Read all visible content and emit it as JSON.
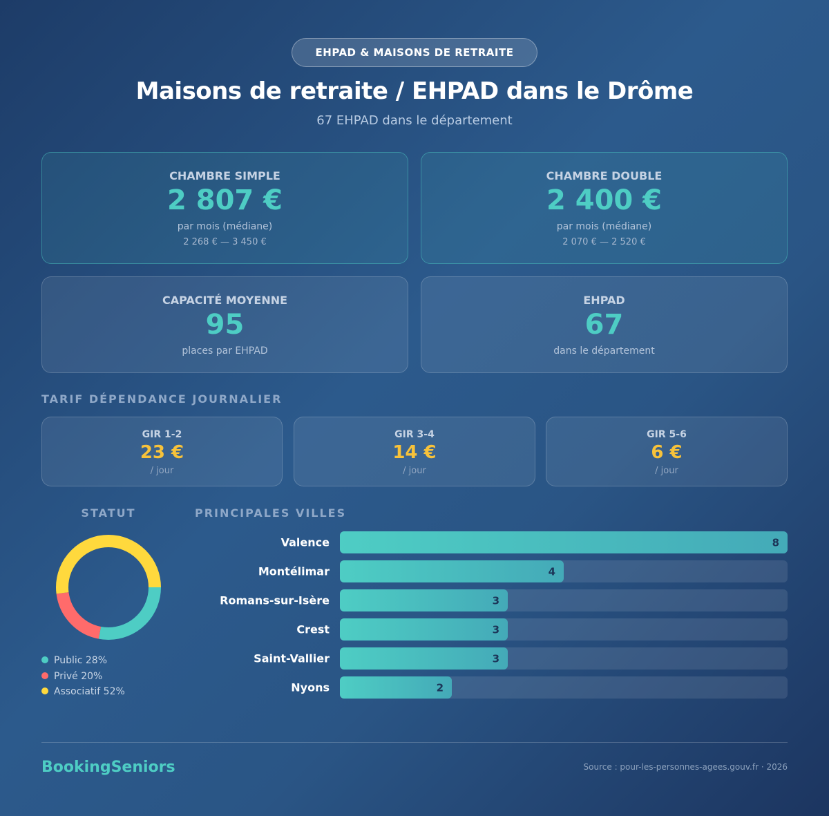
{
  "header": {
    "badge": "EHPAD & MAISONS DE RETRAITE",
    "title": "Maisons de retraite / EHPAD dans le Drôme",
    "subtitle": "67 EHPAD dans le département"
  },
  "cards": [
    {
      "label": "CHAMBRE SIMPLE",
      "value": "2 807 €",
      "note": "par mois (médiane)",
      "range": "2 268 € — 3 450 €"
    },
    {
      "label": "CHAMBRE DOUBLE",
      "value": "2 400 €",
      "note": "par mois (médiane)",
      "range": "2 070 € — 2 520 €"
    },
    {
      "label": "CAPACITÉ MOYENNE",
      "value": "95",
      "note": "places par EHPAD"
    },
    {
      "label": "EHPAD",
      "value": "67",
      "note": "dans le département"
    }
  ],
  "tarif": {
    "title": "TARIF DÉPENDANCE JOURNALIER",
    "items": [
      {
        "label": "GIR 1-2",
        "value": "23 €",
        "unit": "/ jour"
      },
      {
        "label": "GIR 3-4",
        "value": "14 €",
        "unit": "/ jour"
      },
      {
        "label": "GIR 5-6",
        "value": "6 €",
        "unit": "/ jour"
      }
    ]
  },
  "statut": {
    "type": "donut",
    "title": "STATUT",
    "categories": [
      "Public",
      "Privé",
      "Associatif"
    ],
    "values": [
      28,
      20,
      52
    ],
    "value_labels": [
      "28%",
      "20%",
      "52%"
    ],
    "colors": [
      "#4ecdc4",
      "#ff6b6b",
      "#ffd93d"
    ]
  },
  "villes": {
    "type": "bar",
    "title": "PRINCIPALES VILLES",
    "categories": [
      "Valence",
      "Montélimar",
      "Romans-sur-Isère",
      "Crest",
      "Saint-Vallier",
      "Nyons"
    ],
    "values": [
      8,
      4,
      3,
      3,
      3,
      2
    ],
    "xlim": [
      0,
      8
    ],
    "color": "#4ecdc4"
  },
  "footer": {
    "brand": "BookingSeniors",
    "source": "Source : pour-les-personnes-agees.gouv.fr · 2026"
  }
}
